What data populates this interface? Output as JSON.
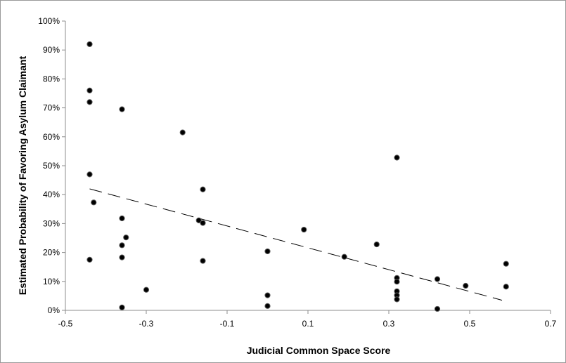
{
  "chart_data": {
    "type": "scatter",
    "title": "",
    "xlabel": "Judicial Common Space Score",
    "ylabel": "Estimated Probability of Favoring Asylum Claimant",
    "xlim": [
      -0.5,
      0.7
    ],
    "ylim": [
      0,
      1
    ],
    "x_ticks": [
      "-0.5",
      "-0.3",
      "-0.1",
      "0.1",
      "0.3",
      "0.5",
      "0.7"
    ],
    "x_tick_values": [
      -0.5,
      -0.3,
      -0.1,
      0.1,
      0.3,
      0.5,
      0.7
    ],
    "y_ticks": [
      "0%",
      "10%",
      "20%",
      "30%",
      "40%",
      "50%",
      "60%",
      "70%",
      "80%",
      "90%",
      "100%"
    ],
    "y_tick_values": [
      0,
      0.1,
      0.2,
      0.3,
      0.4,
      0.5,
      0.6,
      0.7,
      0.8,
      0.9,
      1.0
    ],
    "grid": false,
    "legend": "none",
    "point_color": "#000000",
    "trendline": {
      "style": "dashed",
      "x": [
        -0.44,
        0.58
      ],
      "y": [
        0.42,
        0.035
      ]
    },
    "points": [
      {
        "x": -0.44,
        "y": 0.92
      },
      {
        "x": -0.44,
        "y": 0.76
      },
      {
        "x": -0.44,
        "y": 0.72
      },
      {
        "x": -0.44,
        "y": 0.47
      },
      {
        "x": -0.44,
        "y": 0.175
      },
      {
        "x": -0.43,
        "y": 0.373
      },
      {
        "x": -0.36,
        "y": 0.695
      },
      {
        "x": -0.36,
        "y": 0.318
      },
      {
        "x": -0.36,
        "y": 0.225
      },
      {
        "x": -0.36,
        "y": 0.183
      },
      {
        "x": -0.36,
        "y": 0.01
      },
      {
        "x": -0.35,
        "y": 0.252
      },
      {
        "x": -0.3,
        "y": 0.071
      },
      {
        "x": -0.21,
        "y": 0.615
      },
      {
        "x": -0.17,
        "y": 0.311
      },
      {
        "x": -0.16,
        "y": 0.418
      },
      {
        "x": -0.16,
        "y": 0.302
      },
      {
        "x": -0.16,
        "y": 0.171
      },
      {
        "x": 0.0,
        "y": 0.204
      },
      {
        "x": 0.0,
        "y": 0.052
      },
      {
        "x": 0.0,
        "y": 0.015
      },
      {
        "x": 0.09,
        "y": 0.279
      },
      {
        "x": 0.19,
        "y": 0.185
      },
      {
        "x": 0.27,
        "y": 0.228
      },
      {
        "x": 0.32,
        "y": 0.528
      },
      {
        "x": 0.32,
        "y": 0.112
      },
      {
        "x": 0.32,
        "y": 0.099
      },
      {
        "x": 0.32,
        "y": 0.066
      },
      {
        "x": 0.32,
        "y": 0.052
      },
      {
        "x": 0.32,
        "y": 0.038
      },
      {
        "x": 0.42,
        "y": 0.108
      },
      {
        "x": 0.42,
        "y": 0.005
      },
      {
        "x": 0.49,
        "y": 0.085
      },
      {
        "x": 0.59,
        "y": 0.161
      },
      {
        "x": 0.59,
        "y": 0.082
      }
    ]
  }
}
